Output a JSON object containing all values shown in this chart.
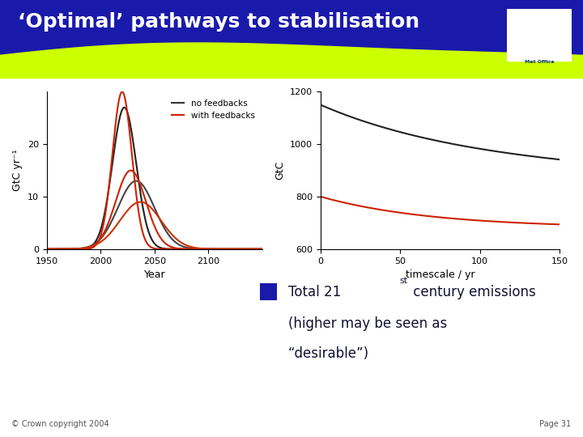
{
  "title": "‘Optimal’ pathways to stabilisation",
  "title_color": "#ffffff",
  "header_bg_color": "#1a1aaa",
  "lime_color": "#ccff00",
  "footer_left": "© Crown copyright 2004",
  "footer_right": "Page 31",
  "left_plot": {
    "xlabel": "Year",
    "ylabel": "GtC yr⁻¹",
    "xlim": [
      1950,
      2150
    ],
    "ylim": [
      0,
      30
    ],
    "yticks": [
      0,
      10,
      20
    ],
    "xticks": [
      1950,
      2000,
      2050,
      2100
    ],
    "legend_labels": [
      "no feedbacks",
      "with feedbacks"
    ],
    "legend_colors": [
      "#333333",
      "#cc2200"
    ]
  },
  "right_plot": {
    "xlabel": "timescale / yr",
    "ylabel": "GtC",
    "xlim": [
      0,
      150
    ],
    "ylim": [
      600,
      1200
    ],
    "yticks": [
      600,
      800,
      1000,
      1200
    ],
    "xticks": [
      0,
      50,
      100,
      150
    ]
  }
}
